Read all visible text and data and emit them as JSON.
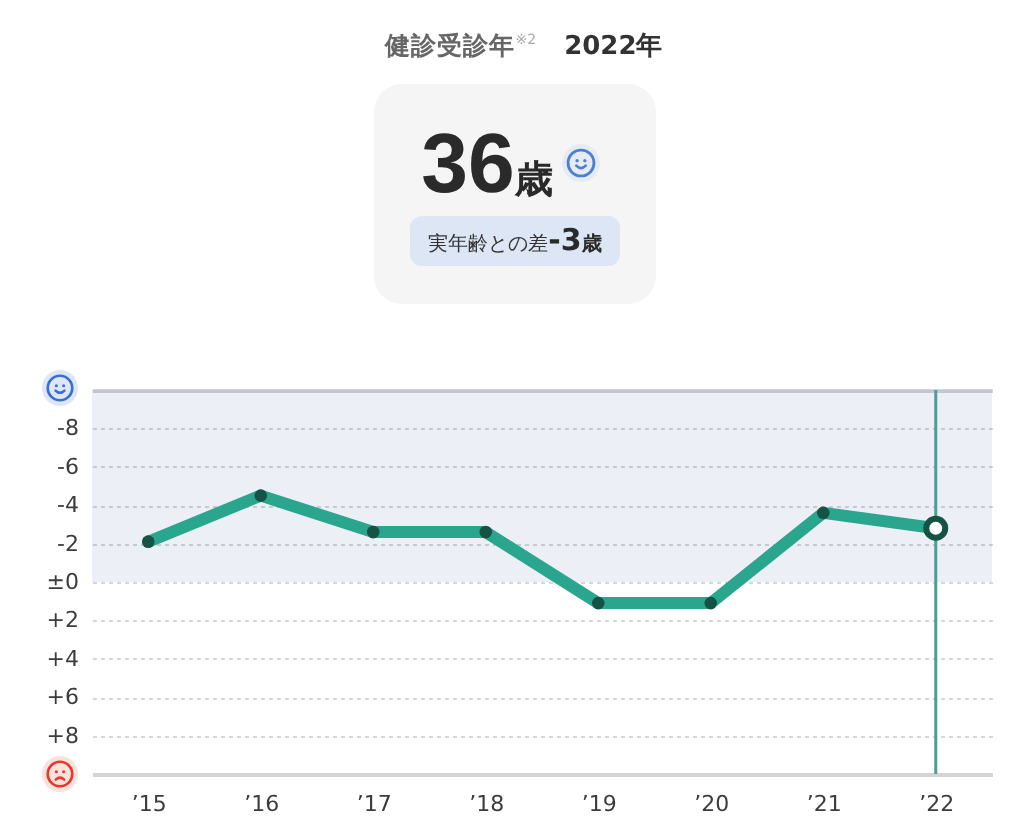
{
  "chart_data": [
    {
      "type": "other",
      "title": "健診受診年$^{※2}$",
      "subtitle": "2022年",
      "annotations": [
        "36歳",
        "実年齢との差-3歳"
      ]
    },
    {
      "type": "line",
      "categories": [
        "’15",
        "’16",
        "’17",
        "’18",
        "’19",
        "’20",
        "’21",
        "’22"
      ],
      "series": [
        {
          "color": "#2ba68e",
          "values": [
            -2.1,
            -4.5,
            -2.6,
            -2.6,
            1.1,
            1.1,
            -3.6,
            -2.8
          ]
        }
      ],
      "ylim": [
        10,
        -10
      ],
      "yticks": [
        {
          "value": -10,
          "label": null
        },
        -8,
        -6,
        -4,
        -2,
        {
          "value": 0,
          "label": "±0"
        },
        {
          "value": 2,
          "label": "+2"
        },
        {
          "value": 4,
          "label": "+4"
        },
        {
          "value": 6,
          "label": "+6"
        },
        {
          "value": 8,
          "label": "+8"
        },
        {
          "value": 10,
          "label": null
        }
      ],
      "grid": "y",
      "marker": "circle",
      "line_style": "solid",
      "bands": [
        {
          "axis": "y",
          "from": -10,
          "to": 0,
          "color": "#eceff5"
        }
      ],
      "ref_lines": [
        {
          "axis": "x",
          "value": "’22",
          "color": "#4a9f92"
        }
      ]
    }
  ]
}
